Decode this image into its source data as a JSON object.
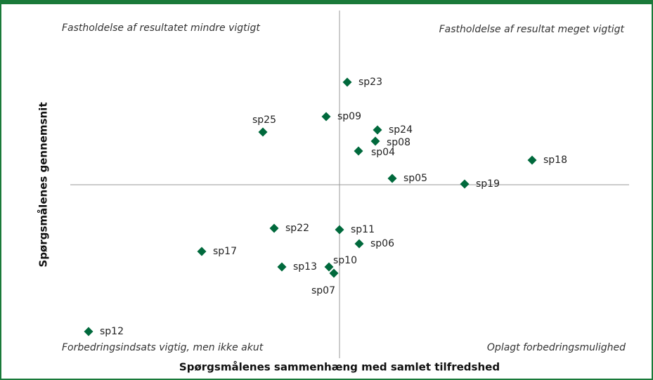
{
  "chart_data": {
    "type": "scatter",
    "x_label": "Spørgsmålenes sammenhæng med samlet tilfredshed",
    "y_label": "Spørgsmålenes gennemsnit",
    "annotations": [
      "Fastholdelse af resultatet mindre vigtigt",
      "Fastholdelse af resultat meget vigtigt",
      "Forbedringsindsats vigtig, men ikke akut",
      "Oplagt forbedringsmulighed"
    ],
    "labels": [
      "sp23",
      "sp09",
      "sp25",
      "sp24",
      "sp08",
      "sp04",
      "sp18",
      "sp05",
      "sp19",
      "sp22",
      "sp11",
      "sp06",
      "sp17",
      "sp13",
      "sp10",
      "sp07",
      "sp12"
    ],
    "x": [
      0.11,
      -0.19,
      -1.09,
      0.54,
      0.51,
      0.27,
      2.74,
      0.75,
      1.78,
      -0.93,
      0.0,
      0.28,
      -1.96,
      -0.82,
      -0.15,
      -0.08,
      -3.57
    ],
    "y": [
      1.46,
      0.97,
      0.75,
      0.78,
      0.62,
      0.48,
      0.35,
      0.09,
      0.01,
      -0.62,
      -0.64,
      -0.84,
      -0.95,
      -1.17,
      -1.17,
      -1.26,
      -2.09
    ],
    "color": "#00693c",
    "xlim": [
      -4,
      4
    ],
    "ylim": [
      -2.5,
      2.5
    ]
  }
}
